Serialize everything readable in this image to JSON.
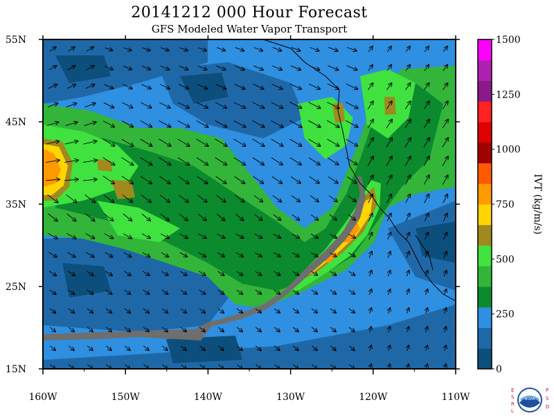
{
  "header": {
    "title": "20141212 000 Hour Forecast",
    "subtitle": "GFS Modeled Water Vapor Transport"
  },
  "map": {
    "lat_labels": [
      "55N",
      "45N",
      "35N",
      "25N",
      "15N"
    ],
    "lon_labels": [
      "160W",
      "150W",
      "140W",
      "130W",
      "120W",
      "110W"
    ],
    "lat_range": [
      15,
      55
    ],
    "lon_range": [
      -160,
      -110
    ]
  },
  "colorbar": {
    "title": "IVT (kg/m/s)",
    "tick_labels": [
      "1500",
      "1250",
      "1000",
      "750",
      "500",
      "250",
      "0"
    ],
    "colors": [
      "#0d4f7c",
      "#1f68a8",
      "#2f8fe0",
      "#0c8a2e",
      "#33b53a",
      "#3fe23f",
      "#a08a1e",
      "#ffd400",
      "#ff9a00",
      "#ff5a00",
      "#a00000",
      "#e00000",
      "#ff2222",
      "#8a1a8a",
      "#b020b0",
      "#ff00ff"
    ]
  },
  "logo": {
    "left_text": "ESRL",
    "right_text": "PSD",
    "center_text": "NOAA"
  }
}
